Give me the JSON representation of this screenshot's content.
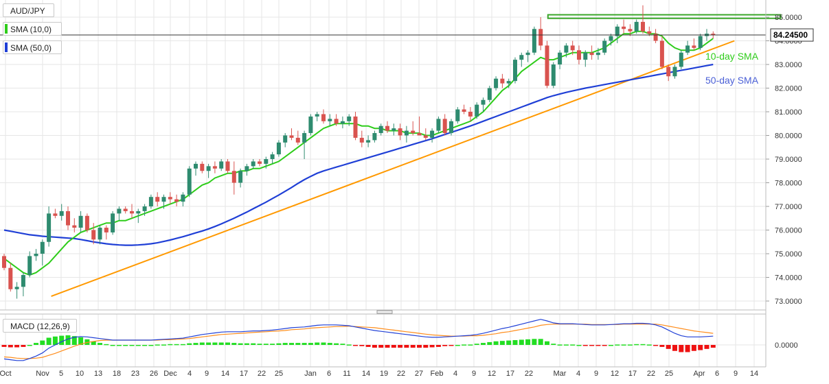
{
  "header": {
    "symbol": "AUD/JPY",
    "sma_fast_label": "SMA (10,0)",
    "sma_slow_label": "SMA (50,0)",
    "macd_label": "MACD (12,26,9)"
  },
  "colors": {
    "up": "#2e8b6f",
    "down": "#d9534f",
    "sma_fast": "#2ecc1a",
    "sma_slow": "#1f3fd6",
    "trendline": "#ff9900",
    "resistance": "#3aa62a",
    "macd_line": "#1f3fd6",
    "signal_line": "#ff8c1a",
    "hist_pos": "#22dd22",
    "hist_neg": "#ee1111"
  },
  "chart_data": [
    {
      "type": "candlestick",
      "title": "AUD/JPY",
      "ylim": [
        72.6,
        85.6
      ],
      "y_ticks": [
        "73.0000",
        "74.0000",
        "75.0000",
        "76.0000",
        "77.0000",
        "78.0000",
        "79.0000",
        "80.0000",
        "81.0000",
        "82.0000",
        "83.0000",
        "84.0000",
        "85.0000"
      ],
      "x_tick_labels": [
        "Oct",
        "Nov",
        "5",
        "10",
        "13",
        "18",
        "23",
        "26",
        "Dec",
        "4",
        "9",
        "14",
        "17",
        "22",
        "25",
        "Jan",
        "6",
        "11",
        "14",
        "19",
        "22",
        "27",
        "Feb",
        "4",
        "9",
        "12",
        "17",
        "22",
        "Mar",
        "4",
        "9",
        "12",
        "17",
        "22",
        "25",
        "Apr",
        "6",
        "9",
        "14"
      ],
      "last_price": "84.24500",
      "annotations": [
        "10-day SMA",
        "50-day SMA"
      ],
      "candles": [
        [
          74.9,
          75.0,
          74.3,
          74.4
        ],
        [
          74.4,
          74.6,
          73.4,
          73.5
        ],
        [
          73.5,
          73.8,
          73.1,
          73.6
        ],
        [
          73.6,
          74.2,
          73.2,
          74.1
        ],
        [
          74.1,
          75.1,
          74.0,
          74.9
        ],
        [
          74.9,
          75.2,
          74.7,
          75.0
        ],
        [
          75.0,
          75.6,
          74.5,
          75.5
        ],
        [
          75.5,
          77.0,
          75.3,
          76.7
        ],
        [
          76.7,
          76.9,
          76.5,
          76.6
        ],
        [
          76.6,
          77.1,
          76.4,
          76.8
        ],
        [
          76.8,
          77.0,
          76.0,
          76.2
        ],
        [
          76.2,
          76.5,
          75.9,
          76.1
        ],
        [
          76.1,
          76.8,
          75.9,
          76.6
        ],
        [
          76.6,
          76.7,
          75.9,
          76.0
        ],
        [
          76.0,
          76.3,
          75.4,
          75.6
        ],
        [
          75.6,
          76.2,
          75.4,
          76.1
        ],
        [
          76.1,
          76.2,
          75.6,
          75.9
        ],
        [
          75.9,
          76.8,
          75.8,
          76.7
        ],
        [
          76.7,
          77.0,
          76.4,
          76.9
        ],
        [
          76.9,
          77.0,
          76.7,
          76.8
        ],
        [
          76.8,
          77.1,
          76.5,
          76.7
        ],
        [
          76.7,
          76.9,
          76.3,
          76.8
        ],
        [
          76.8,
          77.1,
          76.6,
          77.0
        ],
        [
          77.0,
          77.5,
          76.9,
          77.4
        ],
        [
          77.4,
          77.6,
          77.0,
          77.2
        ],
        [
          77.2,
          77.5,
          76.9,
          77.4
        ],
        [
          77.4,
          77.6,
          77.1,
          77.3
        ],
        [
          77.3,
          77.5,
          77.0,
          77.2
        ],
        [
          77.2,
          77.6,
          77.0,
          77.5
        ],
        [
          77.5,
          78.7,
          77.4,
          78.6
        ],
        [
          78.6,
          78.9,
          78.3,
          78.8
        ],
        [
          78.8,
          78.9,
          78.4,
          78.5
        ],
        [
          78.5,
          78.8,
          78.2,
          78.7
        ],
        [
          78.7,
          78.9,
          78.4,
          78.6
        ],
        [
          78.6,
          79.0,
          78.5,
          78.9
        ],
        [
          78.9,
          79.0,
          78.4,
          78.5
        ],
        [
          78.5,
          78.9,
          77.5,
          78.0
        ],
        [
          78.0,
          78.6,
          77.8,
          78.5
        ],
        [
          78.5,
          78.8,
          78.3,
          78.7
        ],
        [
          78.7,
          79.0,
          78.6,
          78.9
        ],
        [
          78.9,
          79.0,
          78.7,
          78.8
        ],
        [
          78.8,
          79.1,
          78.6,
          79.0
        ],
        [
          79.0,
          79.3,
          78.8,
          79.2
        ],
        [
          79.2,
          79.8,
          79.1,
          79.7
        ],
        [
          79.7,
          80.1,
          79.5,
          80.0
        ],
        [
          80.0,
          80.3,
          79.8,
          79.9
        ],
        [
          79.9,
          80.2,
          79.6,
          79.7
        ],
        [
          79.7,
          80.2,
          79.0,
          80.1
        ],
        [
          80.1,
          80.9,
          80.0,
          80.8
        ],
        [
          80.8,
          81.0,
          80.6,
          80.9
        ],
        [
          80.9,
          81.1,
          80.5,
          80.6
        ],
        [
          80.6,
          80.9,
          80.4,
          80.7
        ],
        [
          80.7,
          80.9,
          80.4,
          80.5
        ],
        [
          80.5,
          80.8,
          80.3,
          80.6
        ],
        [
          80.6,
          80.9,
          80.4,
          80.8
        ],
        [
          80.8,
          81.0,
          79.8,
          79.9
        ],
        [
          79.9,
          80.2,
          79.5,
          79.7
        ],
        [
          79.7,
          80.0,
          79.5,
          79.8
        ],
        [
          79.8,
          80.2,
          79.7,
          80.1
        ],
        [
          80.1,
          80.5,
          80.0,
          80.4
        ],
        [
          80.4,
          80.6,
          80.1,
          80.2
        ],
        [
          80.2,
          80.5,
          80.0,
          80.3
        ],
        [
          80.3,
          80.5,
          79.8,
          80.0
        ],
        [
          80.0,
          80.4,
          79.7,
          80.2
        ],
        [
          80.2,
          80.6,
          80.0,
          80.1
        ],
        [
          80.1,
          80.8,
          80.0,
          80.0
        ],
        [
          80.0,
          80.3,
          79.8,
          79.9
        ],
        [
          79.9,
          80.3,
          79.7,
          80.2
        ],
        [
          80.2,
          80.8,
          80.1,
          80.7
        ],
        [
          80.7,
          80.9,
          80.0,
          80.1
        ],
        [
          80.1,
          80.7,
          80.0,
          80.6
        ],
        [
          80.6,
          81.2,
          80.5,
          81.1
        ],
        [
          81.1,
          81.3,
          80.9,
          81.0
        ],
        [
          81.0,
          81.2,
          80.6,
          80.8
        ],
        [
          80.8,
          81.4,
          80.7,
          81.3
        ],
        [
          81.3,
          81.6,
          81.0,
          81.5
        ],
        [
          81.5,
          82.1,
          81.4,
          82.0
        ],
        [
          82.0,
          82.5,
          81.9,
          82.4
        ],
        [
          82.4,
          82.6,
          82.0,
          82.2
        ],
        [
          82.2,
          82.4,
          82.0,
          82.3
        ],
        [
          82.3,
          83.3,
          82.2,
          83.2
        ],
        [
          83.2,
          83.5,
          82.9,
          83.4
        ],
        [
          83.4,
          83.6,
          83.1,
          83.5
        ],
        [
          83.5,
          84.6,
          83.4,
          84.5
        ],
        [
          84.5,
          85.0,
          83.6,
          83.8
        ],
        [
          83.8,
          84.0,
          82.0,
          82.1
        ],
        [
          82.1,
          83.1,
          82.0,
          83.0
        ],
        [
          83.0,
          83.6,
          82.8,
          83.5
        ],
        [
          83.5,
          83.9,
          83.3,
          83.8
        ],
        [
          83.8,
          84.0,
          83.4,
          83.6
        ],
        [
          83.6,
          83.8,
          83.0,
          83.2
        ],
        [
          83.2,
          83.6,
          82.9,
          83.5
        ],
        [
          83.5,
          83.8,
          83.2,
          83.4
        ],
        [
          83.4,
          83.7,
          83.2,
          83.5
        ],
        [
          83.5,
          84.1,
          83.4,
          84.0
        ],
        [
          84.0,
          84.3,
          83.8,
          84.2
        ],
        [
          84.2,
          84.7,
          83.9,
          84.6
        ],
        [
          84.6,
          84.9,
          84.3,
          84.5
        ],
        [
          84.5,
          84.7,
          84.2,
          84.4
        ],
        [
          84.4,
          84.9,
          84.3,
          84.8
        ],
        [
          84.8,
          85.5,
          84.3,
          84.4
        ],
        [
          84.4,
          84.6,
          84.2,
          84.3
        ],
        [
          84.3,
          84.5,
          83.9,
          84.0
        ],
        [
          84.0,
          84.2,
          82.8,
          82.9
        ],
        [
          82.9,
          83.0,
          82.3,
          82.5
        ],
        [
          82.5,
          83.0,
          82.4,
          82.9
        ],
        [
          82.9,
          83.6,
          82.8,
          83.5
        ],
        [
          83.5,
          84.0,
          83.4,
          83.8
        ],
        [
          83.8,
          84.1,
          83.6,
          83.7
        ],
        [
          83.7,
          84.3,
          83.6,
          84.2
        ],
        [
          84.2,
          84.5,
          84.0,
          84.3
        ],
        [
          84.3,
          84.4,
          84.1,
          84.25
        ]
      ],
      "sma_10": [
        74.8,
        74.6,
        74.4,
        74.2,
        74.1,
        74.2,
        74.4,
        74.6,
        74.9,
        75.2,
        75.5,
        75.7,
        75.9,
        76.0,
        76.1,
        76.2,
        76.3,
        76.3,
        76.4,
        76.4,
        76.5,
        76.6,
        76.7,
        76.8,
        76.9,
        77.0,
        77.1,
        77.2,
        77.3,
        77.5,
        77.7,
        77.9,
        78.0,
        78.2,
        78.3,
        78.4,
        78.4,
        78.5,
        78.5,
        78.6,
        78.6,
        78.7,
        78.8,
        78.9,
        79.1,
        79.3,
        79.5,
        79.7,
        79.9,
        80.1,
        80.3,
        80.4,
        80.5,
        80.5,
        80.5,
        80.5,
        80.4,
        80.4,
        80.3,
        80.3,
        80.2,
        80.2,
        80.2,
        80.1,
        80.1,
        80.1,
        80.0,
        80.0,
        80.1,
        80.2,
        80.3,
        80.4,
        80.5,
        80.6,
        80.8,
        81.0,
        81.3,
        81.6,
        81.9,
        82.1,
        82.4,
        82.7,
        82.9,
        83.1,
        83.3,
        83.2,
        83.2,
        83.3,
        83.4,
        83.5,
        83.5,
        83.5,
        83.5,
        83.6,
        83.7,
        83.9,
        84.1,
        84.3,
        84.3,
        84.4,
        84.4,
        84.3,
        84.3,
        84.2,
        83.9,
        83.7,
        83.6,
        83.6,
        83.6,
        83.7,
        83.9,
        84.1
      ],
      "sma_50": [
        76.0,
        75.95,
        75.9,
        75.85,
        75.8,
        75.77,
        75.74,
        75.72,
        75.7,
        75.68,
        75.66,
        75.64,
        75.6,
        75.55,
        75.5,
        75.46,
        75.42,
        75.39,
        75.37,
        75.36,
        75.36,
        75.37,
        75.39,
        75.42,
        75.46,
        75.52,
        75.58,
        75.65,
        75.72,
        75.8,
        75.88,
        75.96,
        76.05,
        76.15,
        76.26,
        76.38,
        76.5,
        76.63,
        76.76,
        76.9,
        77.04,
        77.18,
        77.33,
        77.48,
        77.64,
        77.8,
        77.97,
        78.13,
        78.27,
        78.4,
        78.5,
        78.58,
        78.66,
        78.74,
        78.82,
        78.9,
        78.98,
        79.06,
        79.14,
        79.22,
        79.3,
        79.38,
        79.46,
        79.54,
        79.62,
        79.7,
        79.78,
        79.86,
        79.95,
        80.04,
        80.13,
        80.22,
        80.31,
        80.4,
        80.5,
        80.6,
        80.7,
        80.8,
        80.9,
        81.0,
        81.1,
        81.2,
        81.3,
        81.4,
        81.5,
        81.6,
        81.68,
        81.75,
        81.82,
        81.88,
        81.94,
        82.0,
        82.05,
        82.1,
        82.15,
        82.2,
        82.25,
        82.3,
        82.35,
        82.4,
        82.45,
        82.5,
        82.55,
        82.6,
        82.65,
        82.7,
        82.75,
        82.8,
        82.85,
        82.9,
        82.95,
        83.0
      ],
      "trendline": {
        "start": {
          "index": 2,
          "value": 73.2
        },
        "end": {
          "index": 121,
          "value": 84.0
        }
      },
      "resistance_zone": {
        "start_index": 86,
        "end_index": 122,
        "low": 84.95,
        "high": 85.1
      }
    },
    {
      "type": "macd",
      "title": "MACD (12,26,9)",
      "ylim": [
        -0.45,
        0.75
      ],
      "y_ticks": [
        "0.0000"
      ],
      "macd": [
        -0.35,
        -0.37,
        -0.39,
        -0.39,
        -0.34,
        -0.28,
        -0.2,
        -0.08,
        0.0,
        0.08,
        0.15,
        0.19,
        0.21,
        0.2,
        0.18,
        0.16,
        0.14,
        0.12,
        0.12,
        0.12,
        0.12,
        0.12,
        0.12,
        0.12,
        0.13,
        0.14,
        0.15,
        0.16,
        0.17,
        0.2,
        0.23,
        0.26,
        0.28,
        0.3,
        0.32,
        0.33,
        0.33,
        0.33,
        0.34,
        0.35,
        0.35,
        0.36,
        0.37,
        0.39,
        0.41,
        0.43,
        0.44,
        0.45,
        0.47,
        0.49,
        0.5,
        0.5,
        0.5,
        0.49,
        0.48,
        0.45,
        0.42,
        0.39,
        0.36,
        0.34,
        0.32,
        0.3,
        0.28,
        0.26,
        0.24,
        0.22,
        0.2,
        0.19,
        0.19,
        0.2,
        0.21,
        0.22,
        0.23,
        0.24,
        0.26,
        0.29,
        0.33,
        0.37,
        0.41,
        0.44,
        0.48,
        0.52,
        0.56,
        0.6,
        0.64,
        0.6,
        0.55,
        0.53,
        0.53,
        0.53,
        0.52,
        0.51,
        0.5,
        0.5,
        0.5,
        0.51,
        0.52,
        0.53,
        0.53,
        0.54,
        0.54,
        0.53,
        0.5,
        0.45,
        0.37,
        0.29,
        0.23,
        0.2,
        0.2,
        0.2,
        0.21,
        0.22
      ],
      "signal": [
        -0.3,
        -0.31,
        -0.33,
        -0.34,
        -0.34,
        -0.33,
        -0.31,
        -0.26,
        -0.21,
        -0.15,
        -0.09,
        -0.03,
        0.02,
        0.06,
        0.09,
        0.11,
        0.12,
        0.12,
        0.12,
        0.12,
        0.12,
        0.12,
        0.12,
        0.12,
        0.12,
        0.13,
        0.13,
        0.14,
        0.15,
        0.16,
        0.18,
        0.2,
        0.22,
        0.24,
        0.26,
        0.27,
        0.28,
        0.29,
        0.3,
        0.31,
        0.32,
        0.33,
        0.34,
        0.35,
        0.36,
        0.38,
        0.39,
        0.4,
        0.42,
        0.43,
        0.44,
        0.45,
        0.46,
        0.46,
        0.47,
        0.46,
        0.45,
        0.44,
        0.43,
        0.41,
        0.39,
        0.37,
        0.35,
        0.33,
        0.31,
        0.29,
        0.27,
        0.25,
        0.24,
        0.23,
        0.22,
        0.22,
        0.22,
        0.23,
        0.23,
        0.24,
        0.26,
        0.28,
        0.31,
        0.33,
        0.36,
        0.39,
        0.42,
        0.45,
        0.49,
        0.51,
        0.52,
        0.52,
        0.52,
        0.52,
        0.52,
        0.52,
        0.51,
        0.51,
        0.51,
        0.51,
        0.51,
        0.52,
        0.52,
        0.52,
        0.52,
        0.52,
        0.52,
        0.5,
        0.47,
        0.44,
        0.41,
        0.38,
        0.35,
        0.33,
        0.31,
        0.29
      ]
    }
  ]
}
